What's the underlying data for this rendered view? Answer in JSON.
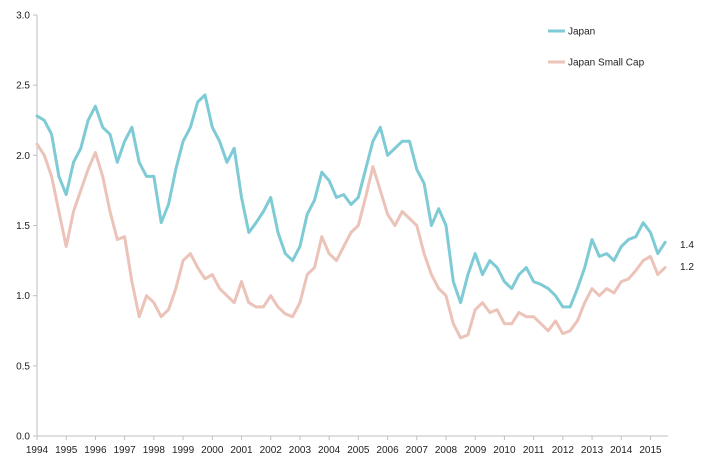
{
  "chart_data": {
    "type": "line",
    "title": "",
    "xlabel": "",
    "ylabel": "",
    "xlim": [
      1994.0,
      2015.6
    ],
    "ylim": [
      0,
      3.0
    ],
    "yticks": [
      "0.0",
      "0.5",
      "1.0",
      "1.5",
      "2.0",
      "2.5",
      "3.0"
    ],
    "xticks": [
      "1994",
      "1995",
      "1996",
      "1997",
      "1998",
      "1999",
      "2000",
      "2001",
      "2002",
      "2003",
      "2004",
      "2005",
      "2006",
      "2007",
      "2008",
      "2009",
      "2010",
      "2011",
      "2012",
      "2013",
      "2014",
      "2015"
    ],
    "grid": false,
    "legend_position": "top-right",
    "colors": {
      "japan": "#7ECBD6",
      "japan_small_cap": "#EBC3B9",
      "axis": "#BFBFBF"
    },
    "series": [
      {
        "name": "Japan",
        "end_label": "1.4",
        "x": [
          1994.0,
          1994.25,
          1994.5,
          1994.75,
          1995.0,
          1995.25,
          1995.5,
          1995.75,
          1996.0,
          1996.25,
          1996.5,
          1996.75,
          1997.0,
          1997.25,
          1997.5,
          1997.75,
          1998.0,
          1998.25,
          1998.5,
          1998.75,
          1999.0,
          1999.25,
          1999.5,
          1999.75,
          2000.0,
          2000.25,
          2000.5,
          2000.75,
          2001.0,
          2001.25,
          2001.5,
          2001.75,
          2002.0,
          2002.25,
          2002.5,
          2002.75,
          2003.0,
          2003.25,
          2003.5,
          2003.75,
          2004.0,
          2004.25,
          2004.5,
          2004.75,
          2005.0,
          2005.25,
          2005.5,
          2005.75,
          2006.0,
          2006.25,
          2006.5,
          2006.75,
          2007.0,
          2007.25,
          2007.5,
          2007.75,
          2008.0,
          2008.25,
          2008.5,
          2008.75,
          2009.0,
          2009.25,
          2009.5,
          2009.75,
          2010.0,
          2010.25,
          2010.5,
          2010.75,
          2011.0,
          2011.25,
          2011.5,
          2011.75,
          2012.0,
          2012.25,
          2012.5,
          2012.75,
          2013.0,
          2013.25,
          2013.5,
          2013.75,
          2014.0,
          2014.25,
          2014.5,
          2014.75,
          2015.0,
          2015.25,
          2015.5
        ],
        "values": [
          2.28,
          2.25,
          2.15,
          1.85,
          1.72,
          1.95,
          2.05,
          2.25,
          2.35,
          2.2,
          2.15,
          1.95,
          2.1,
          2.2,
          1.95,
          1.85,
          1.85,
          1.52,
          1.65,
          1.9,
          2.1,
          2.2,
          2.38,
          2.43,
          2.2,
          2.1,
          1.95,
          2.05,
          1.7,
          1.45,
          1.52,
          1.6,
          1.7,
          1.45,
          1.3,
          1.25,
          1.35,
          1.58,
          1.68,
          1.88,
          1.82,
          1.7,
          1.72,
          1.65,
          1.7,
          1.9,
          2.1,
          2.2,
          2.0,
          2.05,
          2.1,
          2.1,
          1.9,
          1.8,
          1.5,
          1.62,
          1.5,
          1.1,
          0.95,
          1.15,
          1.3,
          1.15,
          1.25,
          1.2,
          1.1,
          1.05,
          1.15,
          1.2,
          1.1,
          1.08,
          1.05,
          1.0,
          0.92,
          0.92,
          1.05,
          1.2,
          1.4,
          1.28,
          1.3,
          1.25,
          1.35,
          1.4,
          1.42,
          1.52,
          1.45,
          1.3,
          1.38
        ]
      },
      {
        "name": "Japan Small Cap",
        "end_label": "1.2",
        "x": [
          1994.0,
          1994.25,
          1994.5,
          1994.75,
          1995.0,
          1995.25,
          1995.5,
          1995.75,
          1996.0,
          1996.25,
          1996.5,
          1996.75,
          1997.0,
          1997.25,
          1997.5,
          1997.75,
          1998.0,
          1998.25,
          1998.5,
          1998.75,
          1999.0,
          1999.25,
          1999.5,
          1999.75,
          2000.0,
          2000.25,
          2000.5,
          2000.75,
          2001.0,
          2001.25,
          2001.5,
          2001.75,
          2002.0,
          2002.25,
          2002.5,
          2002.75,
          2003.0,
          2003.25,
          2003.5,
          2003.75,
          2004.0,
          2004.25,
          2004.5,
          2004.75,
          2005.0,
          2005.25,
          2005.5,
          2005.75,
          2006.0,
          2006.25,
          2006.5,
          2006.75,
          2007.0,
          2007.25,
          2007.5,
          2007.75,
          2008.0,
          2008.25,
          2008.5,
          2008.75,
          2009.0,
          2009.25,
          2009.5,
          2009.75,
          2010.0,
          2010.25,
          2010.5,
          2010.75,
          2011.0,
          2011.25,
          2011.5,
          2011.75,
          2012.0,
          2012.25,
          2012.5,
          2012.75,
          2013.0,
          2013.25,
          2013.5,
          2013.75,
          2014.0,
          2014.25,
          2014.5,
          2014.75,
          2015.0,
          2015.25,
          2015.5
        ],
        "values": [
          2.08,
          2.0,
          1.85,
          1.6,
          1.35,
          1.6,
          1.75,
          1.9,
          2.02,
          1.85,
          1.6,
          1.4,
          1.42,
          1.1,
          0.85,
          1.0,
          0.95,
          0.85,
          0.9,
          1.05,
          1.25,
          1.3,
          1.2,
          1.12,
          1.15,
          1.05,
          1.0,
          0.95,
          1.1,
          0.95,
          0.92,
          0.92,
          1.0,
          0.92,
          0.87,
          0.85,
          0.95,
          1.15,
          1.2,
          1.42,
          1.3,
          1.25,
          1.35,
          1.45,
          1.5,
          1.7,
          1.92,
          1.75,
          1.58,
          1.5,
          1.6,
          1.55,
          1.5,
          1.3,
          1.15,
          1.05,
          1.0,
          0.8,
          0.7,
          0.72,
          0.9,
          0.95,
          0.88,
          0.9,
          0.8,
          0.8,
          0.88,
          0.85,
          0.85,
          0.8,
          0.75,
          0.82,
          0.73,
          0.75,
          0.82,
          0.95,
          1.05,
          1.0,
          1.05,
          1.02,
          1.1,
          1.12,
          1.18,
          1.25,
          1.28,
          1.15,
          1.2
        ]
      }
    ]
  }
}
